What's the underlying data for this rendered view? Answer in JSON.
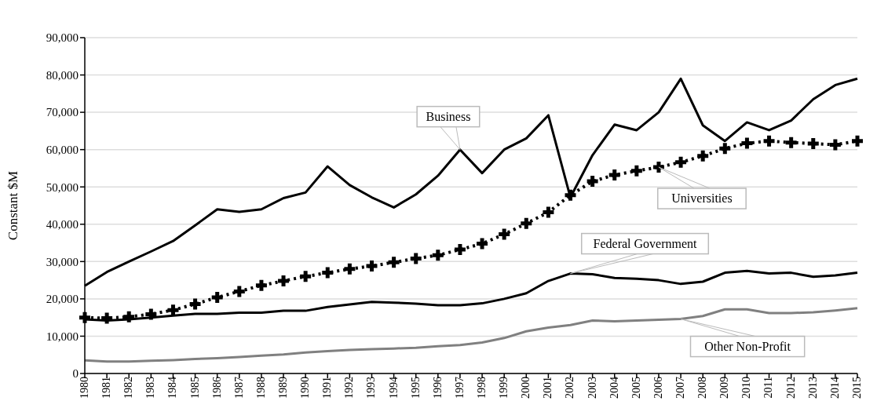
{
  "chart_data": {
    "type": "line",
    "ylabel": "Constant $M",
    "categories": [
      "1980",
      "1981",
      "1982",
      "1983",
      "1984",
      "1985",
      "1986",
      "1987",
      "1988",
      "1989",
      "1990",
      "1991",
      "1992",
      "1993",
      "1994",
      "1995",
      "1996",
      "1997",
      "1998",
      "1999",
      "2000",
      "2001",
      "2002",
      "2003",
      "2004",
      "2005",
      "2006",
      "2007",
      "2008",
      "2009",
      "2010",
      "2011",
      "2012",
      "2013",
      "2014",
      "2015"
    ],
    "series": [
      {
        "name": "Business",
        "color": "#000000",
        "line_style": "solid",
        "marker": "none",
        "values": [
          23500,
          27200,
          30000,
          32700,
          35500,
          39700,
          44000,
          43300,
          44000,
          47000,
          48500,
          55500,
          50500,
          47200,
          44500,
          48000,
          53000,
          60000,
          53700,
          60000,
          63000,
          69200,
          47200,
          58500,
          66700,
          65200,
          70000,
          79000,
          66500,
          62300,
          67300,
          65200,
          67800,
          73500,
          77300,
          79000
        ]
      },
      {
        "name": "Universities",
        "color": "#000000",
        "line_style": "dotted",
        "marker": "cross",
        "values": [
          15000,
          14800,
          15200,
          15900,
          17000,
          18600,
          20400,
          22000,
          23600,
          24800,
          26000,
          27000,
          28000,
          28800,
          29800,
          30800,
          31700,
          33200,
          34800,
          37300,
          40200,
          43200,
          47800,
          51500,
          53200,
          54300,
          55300,
          56600,
          58300,
          60300,
          61700,
          62300,
          61900,
          61600,
          61300,
          62300
        ]
      },
      {
        "name": "Federal Government",
        "color": "#000000",
        "line_style": "solid",
        "marker": "none",
        "values": [
          14500,
          14200,
          14500,
          15000,
          15500,
          16000,
          16000,
          16300,
          16300,
          16800,
          16800,
          17800,
          18500,
          19200,
          19000,
          18700,
          18300,
          18300,
          18800,
          20000,
          21500,
          24800,
          26800,
          26600,
          25600,
          25400,
          25000,
          24000,
          24600,
          27000,
          27500,
          26800,
          27000,
          25900,
          26300,
          27000
        ]
      },
      {
        "name": "Other Non-Profit",
        "color": "#808080",
        "line_style": "solid",
        "marker": "none",
        "values": [
          3500,
          3200,
          3200,
          3400,
          3600,
          3900,
          4100,
          4400,
          4800,
          5100,
          5600,
          6000,
          6300,
          6500,
          6700,
          6900,
          7300,
          7600,
          8300,
          9500,
          11300,
          12300,
          13000,
          14200,
          14000,
          14200,
          14400,
          14600,
          15400,
          17200,
          17200,
          16200,
          16200,
          16400,
          16900,
          17500
        ]
      }
    ],
    "ylim": [
      0,
      90000
    ],
    "yticks": [
      0,
      {
        "value": 10000,
        "label": "10,000"
      },
      {
        "value": 20000,
        "label": "20,000"
      },
      {
        "value": 30000,
        "label": "30,000"
      },
      {
        "value": 40000,
        "label": "40,000"
      },
      {
        "value": 50000,
        "label": "50,000"
      },
      {
        "value": 60000,
        "label": "60,000"
      },
      {
        "value": 70000,
        "label": "70,000"
      },
      {
        "value": 80000,
        "label": "80,000"
      },
      {
        "value": 90000,
        "label": "90,000"
      }
    ],
    "grid": "y"
  }
}
